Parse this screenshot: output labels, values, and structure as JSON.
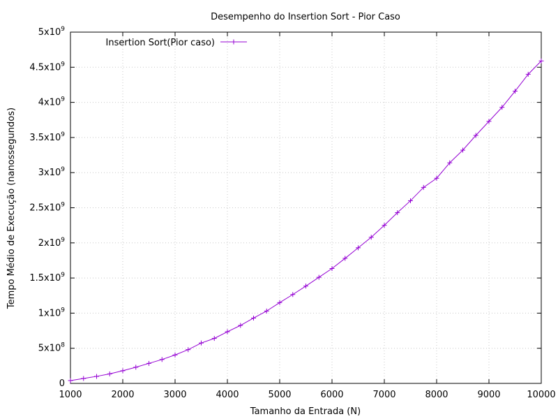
{
  "chart_data": {
    "type": "line",
    "title": "Desempenho do Insertion Sort - Pior Caso",
    "xlabel": "Tamanho da Entrada (N)",
    "ylabel": "Tempo Médio de Execução (nanossegundos)",
    "xlim": [
      1000,
      10000
    ],
    "ylim": [
      0,
      5000000000
    ],
    "xticks": [
      1000,
      2000,
      3000,
      4000,
      5000,
      6000,
      7000,
      8000,
      9000,
      10000
    ],
    "yticks": [
      {
        "value": 0,
        "mantissa": "0",
        "exp": ""
      },
      {
        "value": 500000000,
        "mantissa": "5x10",
        "exp": "8"
      },
      {
        "value": 1000000000,
        "mantissa": "1x10",
        "exp": "9"
      },
      {
        "value": 1500000000,
        "mantissa": "1.5x10",
        "exp": "9"
      },
      {
        "value": 2000000000,
        "mantissa": "2x10",
        "exp": "9"
      },
      {
        "value": 2500000000,
        "mantissa": "2.5x10",
        "exp": "9"
      },
      {
        "value": 3000000000,
        "mantissa": "3x10",
        "exp": "9"
      },
      {
        "value": 3500000000,
        "mantissa": "3.5x10",
        "exp": "9"
      },
      {
        "value": 4000000000,
        "mantissa": "4x10",
        "exp": "9"
      },
      {
        "value": 4500000000,
        "mantissa": "4.5x10",
        "exp": "9"
      },
      {
        "value": 5000000000,
        "mantissa": "5x10",
        "exp": "9"
      }
    ],
    "grid": true,
    "legend_position": "top-left",
    "series": [
      {
        "name": "Insertion Sort(Pior caso)",
        "color": "#9400d3",
        "marker": "plus",
        "x": [
          1000,
          1250,
          1500,
          1750,
          2000,
          2250,
          2500,
          2750,
          3000,
          3250,
          3500,
          3750,
          4000,
          4250,
          4500,
          4750,
          5000,
          5250,
          5500,
          5750,
          6000,
          6250,
          6500,
          6750,
          7000,
          7250,
          7500,
          7750,
          8000,
          8250,
          8500,
          8750,
          9000,
          9250,
          9500,
          9750,
          10000
        ],
        "y": [
          40000000,
          70000000,
          100000000,
          135000000,
          180000000,
          230000000,
          285000000,
          340000000,
          405000000,
          480000000,
          575000000,
          640000000,
          735000000,
          825000000,
          930000000,
          1030000000,
          1150000000,
          1265000000,
          1385000000,
          1510000000,
          1635000000,
          1780000000,
          1930000000,
          2080000000,
          2250000000,
          2430000000,
          2600000000,
          2790000000,
          2920000000,
          3140000000,
          3320000000,
          3530000000,
          3730000000,
          3930000000,
          4160000000,
          4400000000,
          4590000000
        ]
      }
    ]
  }
}
